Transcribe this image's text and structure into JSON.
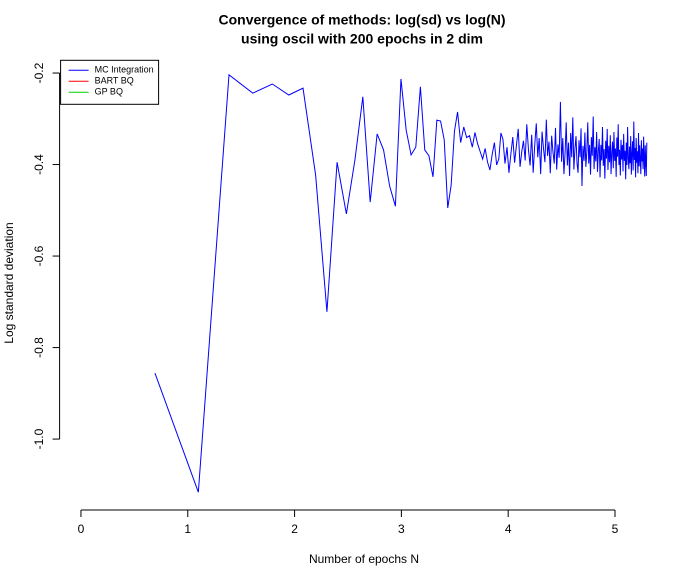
{
  "chart_data": {
    "type": "line",
    "title": "Convergence of methods: log(sd) vs log(N)",
    "subtitle": "using oscil with 200 epochs in 2 dim",
    "x_label": "Number of epochs N",
    "y_label": "Log standard deviation",
    "xlim": [
      -0.2,
      5.5
    ],
    "ylim": [
      -1.155,
      -0.17
    ],
    "xticks": [
      0,
      1,
      2,
      3,
      4,
      5
    ],
    "yticks": [
      -0.2,
      -0.4,
      -0.6,
      -0.8,
      {
        "value": -1,
        "label": "-1.0"
      }
    ],
    "legend_position": "top-left",
    "legend": [
      {
        "name": "MC Integration",
        "color": "#0000ff"
      },
      {
        "name": "BART BQ",
        "color": "#ff0000"
      },
      {
        "name": "GP BQ",
        "color": "#00cd00"
      }
    ],
    "x": [
      0.693,
      1.099,
      1.386,
      1.609,
      1.792,
      1.946,
      2.079,
      2.197,
      2.303,
      2.398,
      2.485,
      2.565,
      2.639,
      2.708,
      2.773,
      2.833,
      2.89,
      2.944,
      2.996,
      3.045,
      3.091,
      3.135,
      3.178,
      3.219,
      3.258,
      3.296,
      3.332,
      3.367,
      3.401,
      3.434,
      3.466,
      3.497,
      3.526,
      3.555,
      3.584,
      3.611,
      3.638,
      3.664,
      3.689,
      3.714,
      3.738,
      3.761,
      3.784,
      3.807,
      3.829,
      3.85,
      3.871,
      3.892,
      3.912,
      3.932,
      3.951,
      3.97,
      3.989,
      4.007,
      4.025,
      4.043,
      4.06,
      4.078,
      4.094,
      4.111,
      4.127,
      4.143,
      4.159,
      4.174,
      4.19,
      4.205,
      4.22,
      4.234,
      4.248,
      4.263,
      4.277,
      4.29,
      4.304,
      4.317,
      4.331,
      4.344,
      4.357,
      4.369,
      4.382,
      4.394,
      4.407,
      4.419,
      4.431,
      4.443,
      4.454,
      4.466,
      4.477,
      4.489,
      4.5,
      4.511,
      4.522,
      4.533,
      4.543,
      4.554,
      4.564,
      4.575,
      4.585,
      4.595,
      4.605,
      4.615,
      4.625,
      4.635,
      4.644,
      4.654,
      4.663,
      4.673,
      4.682,
      4.691,
      4.7,
      4.71,
      4.718,
      4.727,
      4.736,
      4.745,
      4.754,
      4.762,
      4.771,
      4.779,
      4.787,
      4.796,
      4.804,
      4.812,
      4.82,
      4.828,
      4.836,
      4.844,
      4.852,
      4.86,
      4.868,
      4.875,
      4.883,
      4.89,
      4.898,
      4.905,
      4.913,
      4.92,
      4.927,
      4.934,
      4.942,
      4.949,
      4.956,
      4.963,
      4.97,
      4.977,
      4.984,
      4.99,
      4.997,
      5.004,
      5.011,
      5.017,
      5.024,
      5.03,
      5.037,
      5.043,
      5.05,
      5.056,
      5.063,
      5.069,
      5.075,
      5.081,
      5.088,
      5.094,
      5.1,
      5.106,
      5.112,
      5.118,
      5.124,
      5.13,
      5.136,
      5.142,
      5.147,
      5.153,
      5.159,
      5.165,
      5.17,
      5.176,
      5.182,
      5.187,
      5.193,
      5.198,
      5.204,
      5.209,
      5.215,
      5.22,
      5.226,
      5.231,
      5.236,
      5.242,
      5.247,
      5.252,
      5.257,
      5.263,
      5.268,
      5.273,
      5.278,
      5.283,
      5.288,
      5.293,
      5.298
    ],
    "series": [
      {
        "name": "MC Integration",
        "color": "#0000ff",
        "values": [
          -0.856,
          -1.116,
          -0.204,
          -0.244,
          -0.224,
          -0.248,
          -0.233,
          -0.423,
          -0.722,
          -0.395,
          -0.508,
          -0.39,
          -0.252,
          -0.482,
          -0.333,
          -0.368,
          -0.447,
          -0.491,
          -0.213,
          -0.325,
          -0.379,
          -0.362,
          -0.23,
          -0.368,
          -0.381,
          -0.427,
          -0.303,
          -0.305,
          -0.346,
          -0.495,
          -0.445,
          -0.327,
          -0.285,
          -0.352,
          -0.318,
          -0.341,
          -0.337,
          -0.362,
          -0.33,
          -0.355,
          -0.372,
          -0.388,
          -0.365,
          -0.395,
          -0.412,
          -0.378,
          -0.352,
          -0.401,
          -0.388,
          -0.331,
          -0.345,
          -0.398,
          -0.362,
          -0.418,
          -0.377,
          -0.34,
          -0.396,
          -0.356,
          -0.322,
          -0.405,
          -0.372,
          -0.348,
          -0.391,
          -0.312,
          -0.368,
          -0.402,
          -0.335,
          -0.418,
          -0.359,
          -0.31,
          -0.384,
          -0.342,
          -0.421,
          -0.328,
          -0.366,
          -0.395,
          -0.302,
          -0.381,
          -0.35,
          -0.419,
          -0.337,
          -0.372,
          -0.398,
          -0.32,
          -0.411,
          -0.356,
          -0.385,
          -0.263,
          -0.394,
          -0.342,
          -0.421,
          -0.373,
          -0.308,
          -0.402,
          -0.352,
          -0.425,
          -0.331,
          -0.384,
          -0.297,
          -0.411,
          -0.366,
          -0.338,
          -0.396,
          -0.418,
          -0.347,
          -0.384,
          -0.321,
          -0.447,
          -0.359,
          -0.392,
          -0.33,
          -0.405,
          -0.373,
          -0.308,
          -0.398,
          -0.357,
          -0.422,
          -0.34,
          -0.381,
          -0.295,
          -0.41,
          -0.362,
          -0.393,
          -0.329,
          -0.416,
          -0.371,
          -0.344,
          -0.428,
          -0.357,
          -0.391,
          -0.318,
          -0.403,
          -0.366,
          -0.431,
          -0.348,
          -0.387,
          -0.322,
          -0.412,
          -0.359,
          -0.395,
          -0.336,
          -0.421,
          -0.374,
          -0.35,
          -0.408,
          -0.329,
          -0.392,
          -0.365,
          -0.427,
          -0.341,
          -0.383,
          -0.312,
          -0.401,
          -0.368,
          -0.424,
          -0.346,
          -0.389,
          -0.357,
          -0.415,
          -0.333,
          -0.392,
          -0.37,
          -0.432,
          -0.352,
          -0.401,
          -0.318,
          -0.385,
          -0.41,
          -0.361,
          -0.397,
          -0.338,
          -0.422,
          -0.375,
          -0.349,
          -0.413,
          -0.306,
          -0.39,
          -0.364,
          -0.428,
          -0.342,
          -0.396,
          -0.371,
          -0.419,
          -0.331,
          -0.404,
          -0.358,
          -0.386,
          -0.421,
          -0.347,
          -0.393,
          -0.365,
          -0.41,
          -0.339,
          -0.384,
          -0.426,
          -0.358,
          -0.397,
          -0.425,
          -0.352
        ]
      }
    ]
  }
}
